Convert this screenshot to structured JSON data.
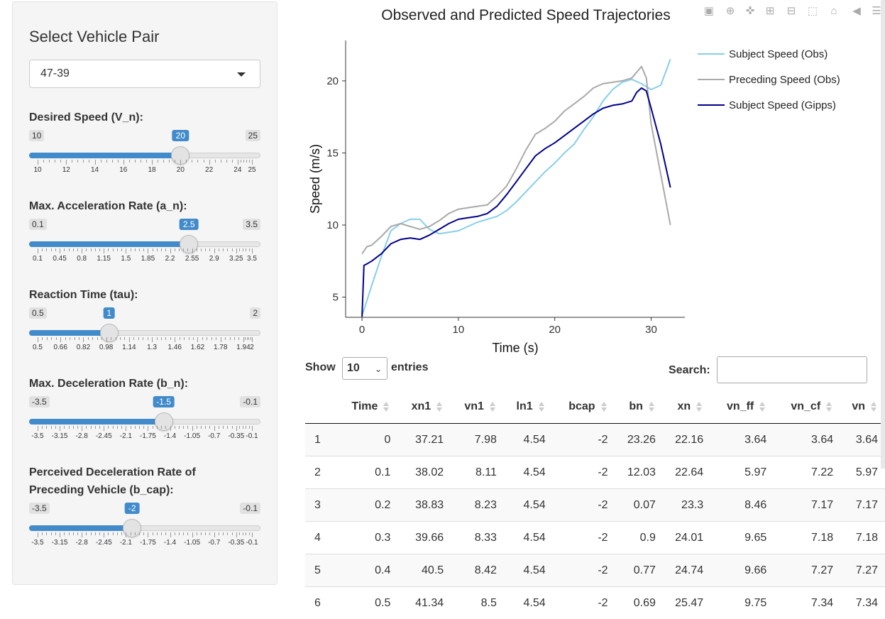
{
  "sidebar": {
    "title": "Select Vehicle Pair",
    "vehicle_pair": "47-39",
    "sliders": [
      {
        "label": "Desired Speed (V_n):",
        "min_label": "10",
        "max_label": "25",
        "value_label": "20",
        "min": 10,
        "max": 25,
        "value": 20,
        "ticks": [
          {
            "v": 10,
            "t": "10"
          },
          {
            "v": 12,
            "t": "12"
          },
          {
            "v": 14,
            "t": "14"
          },
          {
            "v": 16,
            "t": "16"
          },
          {
            "v": 18,
            "t": "18"
          },
          {
            "v": 20,
            "t": "20"
          },
          {
            "v": 22,
            "t": "22"
          },
          {
            "v": 24,
            "t": "24"
          },
          {
            "v": 25,
            "t": "25"
          }
        ]
      },
      {
        "label": "Max. Acceleration Rate (a_n):",
        "min_label": "0.1",
        "max_label": "3.5",
        "value_label": "2.5",
        "min": 0.1,
        "max": 3.5,
        "value": 2.5,
        "ticks": [
          {
            "v": 0.1,
            "t": "0.1"
          },
          {
            "v": 0.45,
            "t": "0.45"
          },
          {
            "v": 0.8,
            "t": "0.8"
          },
          {
            "v": 1.15,
            "t": "1.15"
          },
          {
            "v": 1.5,
            "t": "1.5"
          },
          {
            "v": 1.85,
            "t": "1.85"
          },
          {
            "v": 2.2,
            "t": "2.2"
          },
          {
            "v": 2.55,
            "t": "2.55"
          },
          {
            "v": 2.9,
            "t": "2.9"
          },
          {
            "v": 3.25,
            "t": "3.25"
          },
          {
            "v": 3.5,
            "t": "3.5"
          }
        ]
      },
      {
        "label": "Reaction Time (tau):",
        "min_label": "0.5",
        "max_label": "2",
        "value_label": "1",
        "min": 0.5,
        "max": 2,
        "value": 1,
        "ticks": [
          {
            "v": 0.5,
            "t": "0.5"
          },
          {
            "v": 0.66,
            "t": "0.66"
          },
          {
            "v": 0.82,
            "t": "0.82"
          },
          {
            "v": 0.98,
            "t": "0.98"
          },
          {
            "v": 1.14,
            "t": "1.14"
          },
          {
            "v": 1.3,
            "t": "1.3"
          },
          {
            "v": 1.46,
            "t": "1.46"
          },
          {
            "v": 1.62,
            "t": "1.62"
          },
          {
            "v": 1.78,
            "t": "1.78"
          },
          {
            "v": 1.94,
            "t": "1.94"
          },
          {
            "v": 2,
            "t": "2"
          }
        ]
      },
      {
        "label": "Max. Deceleration Rate (b_n):",
        "min_label": "-3.5",
        "max_label": "-0.1",
        "value_label": "-1.5",
        "min": -3.5,
        "max": -0.1,
        "value": -1.5,
        "ticks": [
          {
            "v": -3.5,
            "t": "-3.5"
          },
          {
            "v": -3.15,
            "t": "-3.15"
          },
          {
            "v": -2.8,
            "t": "-2.8"
          },
          {
            "v": -2.45,
            "t": "-2.45"
          },
          {
            "v": -2.1,
            "t": "-2.1"
          },
          {
            "v": -1.75,
            "t": "-1.75"
          },
          {
            "v": -1.4,
            "t": "-1.4"
          },
          {
            "v": -1.05,
            "t": "-1.05"
          },
          {
            "v": -0.7,
            "t": "-0.7"
          },
          {
            "v": -0.35,
            "t": "-0.35"
          },
          {
            "v": -0.1,
            "t": "-0.1"
          }
        ]
      },
      {
        "label": "Perceived Deceleration Rate of Preceding Vehicle (b_cap):",
        "min_label": "-3.5",
        "max_label": "-0.1",
        "value_label": "-2",
        "min": -3.5,
        "max": -0.1,
        "value": -2,
        "ticks": [
          {
            "v": -3.5,
            "t": "-3.5"
          },
          {
            "v": -3.15,
            "t": "-3.15"
          },
          {
            "v": -2.8,
            "t": "-2.8"
          },
          {
            "v": -2.45,
            "t": "-2.45"
          },
          {
            "v": -2.1,
            "t": "-2.1"
          },
          {
            "v": -1.75,
            "t": "-1.75"
          },
          {
            "v": -1.4,
            "t": "-1.4"
          },
          {
            "v": -1.05,
            "t": "-1.05"
          },
          {
            "v": -0.7,
            "t": "-0.7"
          },
          {
            "v": -0.35,
            "t": "-0.35"
          },
          {
            "v": -0.1,
            "t": "-0.1"
          }
        ]
      }
    ]
  },
  "colors": {
    "accent": "#428bca",
    "subject_obs": "#87ceeb",
    "preceding_obs": "#a9a9a9",
    "subject_gipps": "#00008b"
  },
  "modebar": [
    "camera-icon",
    "zoom-icon",
    "pan-icon",
    "zoom-in-icon",
    "zoom-out-icon",
    "autoscale-icon",
    "home-icon",
    "spike-icon",
    "compare-icon",
    "plotly-logo-icon"
  ],
  "table": {
    "show_label": "Show",
    "page_length": "10",
    "entries_label": "entries",
    "search_label": "Search:",
    "columns": [
      "",
      "Time",
      "xn1",
      "vn1",
      "ln1",
      "bcap",
      "bn",
      "xn",
      "vn_ff",
      "vn_cf",
      "vn"
    ],
    "rows": [
      [
        "1",
        "0",
        "37.21",
        "7.98",
        "4.54",
        "-2",
        "23.26",
        "22.16",
        "3.64",
        "3.64",
        "3.64"
      ],
      [
        "2",
        "0.1",
        "38.02",
        "8.11",
        "4.54",
        "-2",
        "12.03",
        "22.64",
        "5.97",
        "7.22",
        "5.97"
      ],
      [
        "3",
        "0.2",
        "38.83",
        "8.23",
        "4.54",
        "-2",
        "0.07",
        "23.3",
        "8.46",
        "7.17",
        "7.17"
      ],
      [
        "4",
        "0.3",
        "39.66",
        "8.33",
        "4.54",
        "-2",
        "0.9",
        "24.01",
        "9.65",
        "7.18",
        "7.18"
      ],
      [
        "5",
        "0.4",
        "40.5",
        "8.42",
        "4.54",
        "-2",
        "0.77",
        "24.74",
        "9.66",
        "7.27",
        "7.27"
      ],
      [
        "6",
        "0.5",
        "41.34",
        "8.5",
        "4.54",
        "-2",
        "0.69",
        "25.47",
        "9.75",
        "7.34",
        "7.34"
      ]
    ]
  },
  "chart_data": {
    "type": "line",
    "title": "Observed and Predicted Speed Trajectories",
    "xlabel": "Time (s)",
    "ylabel": "Speed (m/s)",
    "xlim": [
      -1.7,
      33.5
    ],
    "ylim": [
      3.6,
      22.8
    ],
    "xticks": [
      0,
      10,
      20,
      30
    ],
    "yticks": [
      5,
      10,
      15,
      20
    ],
    "legend_position": "top-right",
    "series": [
      {
        "name": "Subject Speed (Obs)",
        "color": "#87ceeb",
        "x": [
          0,
          1,
          2,
          3,
          4,
          5,
          6,
          7,
          8,
          9,
          10,
          11,
          12,
          13,
          14,
          15,
          16,
          17,
          18,
          19,
          20,
          21,
          22,
          23,
          24,
          25,
          26,
          27,
          28,
          29,
          30,
          31,
          32
        ],
        "y": [
          3.7,
          5.8,
          7.8,
          9.6,
          10.1,
          10.4,
          10.4,
          9.7,
          9.4,
          9.5,
          9.6,
          9.9,
          10.2,
          10.4,
          10.6,
          11.0,
          11.6,
          12.3,
          13.0,
          13.7,
          14.3,
          15.0,
          15.6,
          16.6,
          17.5,
          18.6,
          19.4,
          19.9,
          20.1,
          19.8,
          19.4,
          19.7,
          21.5
        ]
      },
      {
        "name": "Preceding Speed (Obs)",
        "color": "#a9a9a9",
        "x": [
          0,
          0.5,
          1,
          2,
          3,
          4,
          5,
          6,
          7,
          8,
          9,
          10,
          11,
          12,
          13,
          14,
          15,
          16,
          17,
          18,
          19,
          20,
          21,
          22,
          23,
          24,
          25,
          26,
          27,
          28,
          29,
          29.5,
          30,
          31,
          32
        ],
        "y": [
          8.0,
          8.5,
          8.6,
          9.2,
          9.9,
          10.1,
          9.9,
          9.7,
          9.9,
          10.3,
          10.8,
          11.1,
          11.2,
          11.3,
          11.4,
          12.0,
          12.7,
          13.9,
          15.2,
          16.3,
          16.7,
          17.2,
          17.9,
          18.4,
          18.9,
          19.5,
          19.8,
          19.9,
          20.0,
          20.2,
          21.0,
          20.2,
          17.0,
          13.5,
          10.0
        ]
      },
      {
        "name": "Subject Speed (Gipps)",
        "color": "#00008b",
        "x": [
          0,
          0.2,
          0.5,
          1,
          2,
          3,
          4,
          5,
          6,
          7,
          8,
          9,
          10,
          11,
          12,
          13,
          14,
          15,
          16,
          17,
          18,
          19,
          20,
          21,
          22,
          23,
          24,
          25,
          26,
          27,
          28,
          28.5,
          29,
          29.5,
          30,
          31,
          32
        ],
        "y": [
          3.64,
          7.2,
          7.3,
          7.5,
          8.0,
          8.7,
          9.0,
          9.1,
          9.0,
          9.3,
          9.7,
          10.1,
          10.4,
          10.5,
          10.6,
          10.8,
          11.3,
          12.1,
          13.0,
          13.9,
          14.8,
          15.3,
          15.7,
          16.2,
          16.7,
          17.2,
          17.7,
          18.1,
          18.3,
          18.4,
          18.6,
          19.2,
          19.5,
          19.3,
          18.1,
          15.6,
          12.6
        ]
      }
    ]
  }
}
